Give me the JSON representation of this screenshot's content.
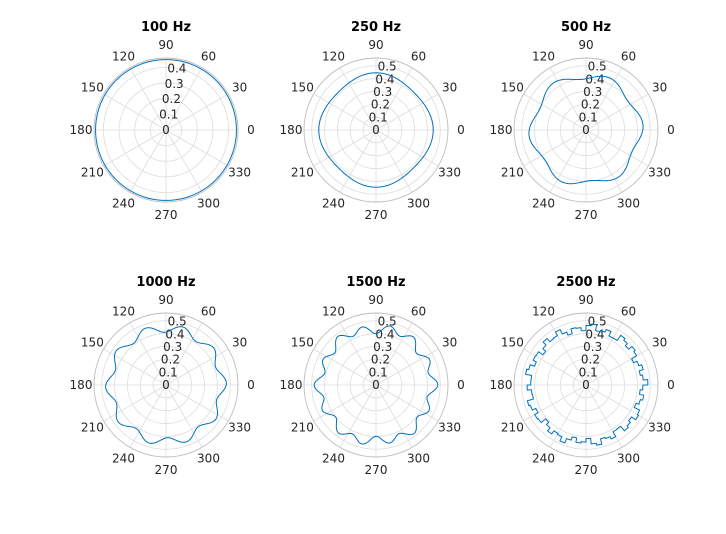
{
  "colors": {
    "series": "#0072bd"
  },
  "chart_data": [
    {
      "type": "polar",
      "title": "100 Hz",
      "rticks": [
        "0",
        "0.1",
        "0.2",
        "0.3",
        "0.4"
      ],
      "rlim": [
        0,
        0.46
      ],
      "thetaticks": [
        "0",
        "30",
        "60",
        "90",
        "120",
        "150",
        "180",
        "210",
        "240",
        "270",
        "300",
        "330"
      ],
      "series": [
        {
          "r0": 0.45,
          "ripple": []
        }
      ]
    },
    {
      "type": "polar",
      "title": "250 Hz",
      "rticks": [
        "0",
        "0.1",
        "0.2",
        "0.3",
        "0.4",
        "0.5"
      ],
      "rlim": [
        0,
        0.56
      ],
      "thetaticks": [
        "0",
        "30",
        "60",
        "90",
        "120",
        "150",
        "180",
        "210",
        "240",
        "270",
        "300",
        "330"
      ],
      "series": [
        {
          "r0": 0.43,
          "ripple": [
            [
              4,
              0.015,
              0
            ]
          ]
        }
      ]
    },
    {
      "type": "polar",
      "title": "500 Hz",
      "rticks": [
        "0",
        "0.1",
        "0.2",
        "0.3",
        "0.4",
        "0.5"
      ],
      "rlim": [
        0,
        0.56
      ],
      "thetaticks": [
        "0",
        "30",
        "60",
        "90",
        "120",
        "150",
        "180",
        "210",
        "240",
        "270",
        "300",
        "330"
      ],
      "series": [
        {
          "r0": 0.42,
          "ripple": [
            [
              6,
              0.025,
              30
            ]
          ]
        }
      ]
    },
    {
      "type": "polar",
      "title": "1000 Hz",
      "rticks": [
        "0",
        "0.1",
        "0.2",
        "0.3",
        "0.4",
        "0.5"
      ],
      "rlim": [
        0,
        0.56
      ],
      "thetaticks": [
        "0",
        "30",
        "60",
        "90",
        "120",
        "150",
        "180",
        "210",
        "240",
        "270",
        "300",
        "330"
      ],
      "series": [
        {
          "r0": 0.44,
          "ripple": [
            [
              10,
              0.03,
              18
            ]
          ]
        }
      ]
    },
    {
      "type": "polar",
      "title": "1500 Hz",
      "rticks": [
        "0",
        "0.1",
        "0.2",
        "0.3",
        "0.4",
        "0.5"
      ],
      "rlim": [
        0,
        0.56
      ],
      "thetaticks": [
        "0",
        "30",
        "60",
        "90",
        "120",
        "150",
        "180",
        "210",
        "240",
        "270",
        "300",
        "330"
      ],
      "series": [
        {
          "r0": 0.44,
          "ripple": [
            [
              14,
              0.03,
              0
            ],
            [
              6,
              0.012,
              20
            ]
          ]
        }
      ]
    },
    {
      "type": "polar",
      "title": "2500 Hz",
      "rticks": [
        "0",
        "0.1",
        "0.2",
        "0.3",
        "0.4",
        "0.5"
      ],
      "rlim": [
        0,
        0.56
      ],
      "thetaticks": [
        "0",
        "30",
        "60",
        "90",
        "120",
        "150",
        "180",
        "210",
        "240",
        "270",
        "300",
        "330"
      ],
      "series": [
        {
          "r0": 0.445,
          "ripple": [
            [
              22,
              0.025,
              0
            ],
            [
              9,
              0.012,
              15
            ]
          ],
          "stepped": true
        }
      ]
    }
  ]
}
